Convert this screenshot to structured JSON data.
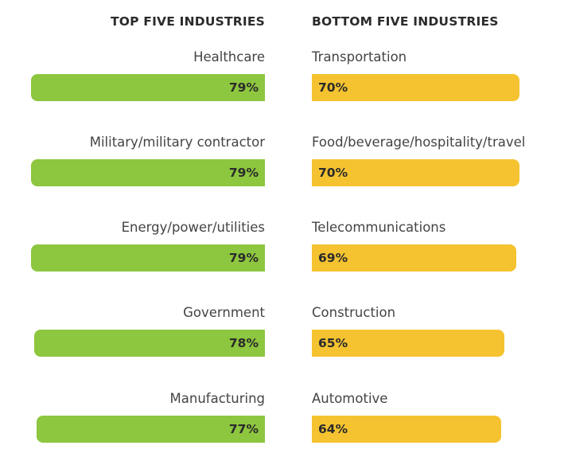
{
  "colors": {
    "top": "#8dc63f",
    "bottom": "#f5c330"
  },
  "chart_data": {
    "type": "bar",
    "panels": [
      {
        "title": "TOP FIVE INDUSTRIES",
        "categories": [
          "Healthcare",
          "Military/military contractor",
          "Energy/power/utilities",
          "Government",
          "Manufacturing"
        ],
        "values": [
          79,
          79,
          79,
          78,
          77
        ],
        "labels": [
          "79%",
          "79%",
          "79%",
          "78%",
          "77%"
        ]
      },
      {
        "title": "BOTTOM FIVE INDUSTRIES",
        "categories": [
          "Transportation",
          "Food/beverage/hospitality/travel",
          "Telecommunications",
          "Construction",
          "Automotive"
        ],
        "values": [
          70,
          70,
          69,
          65,
          64
        ],
        "labels": [
          "70%",
          "70%",
          "69%",
          "65%",
          "64%"
        ]
      }
    ]
  }
}
